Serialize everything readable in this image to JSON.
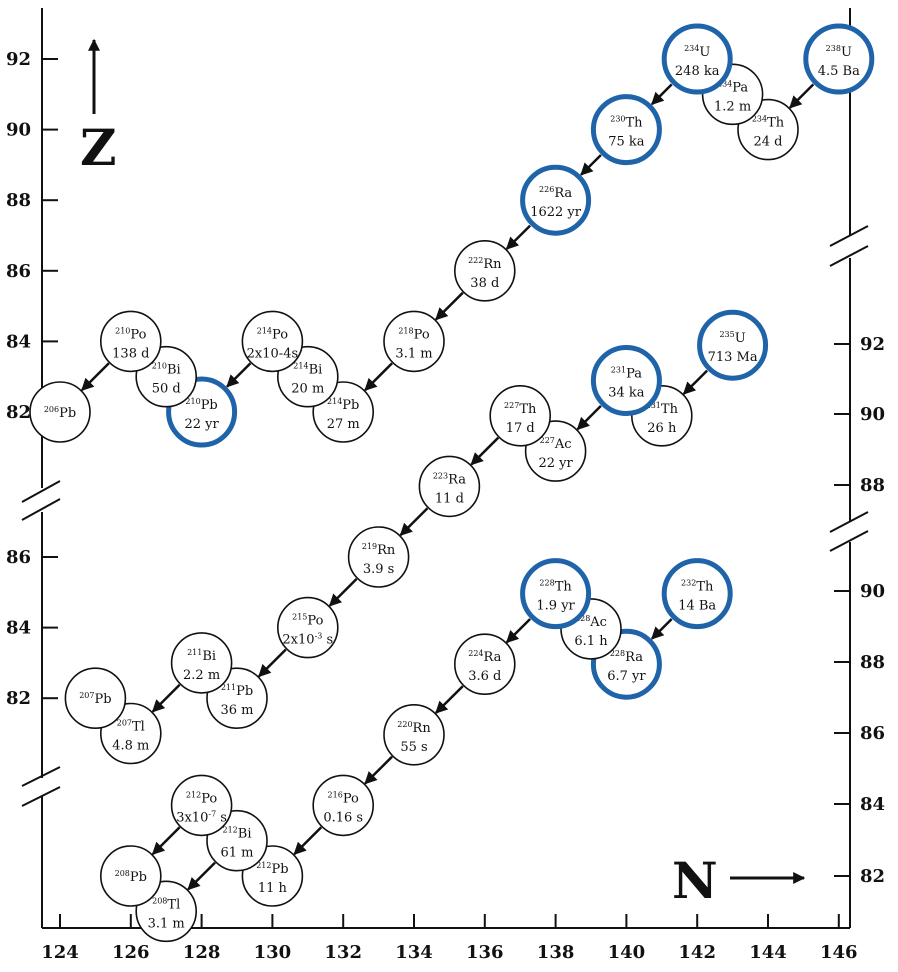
{
  "axes": {
    "x_title": "N",
    "y_title": "Z",
    "x_ticks": [
      "124",
      "126",
      "128",
      "130",
      "132",
      "134",
      "136",
      "138",
      "140",
      "142",
      "144",
      "146"
    ]
  },
  "panels": [
    {
      "id": "uranium-238-series",
      "left_ticks": [
        "92",
        "90",
        "88",
        "86",
        "84",
        "82"
      ],
      "right_ticks": [],
      "nuclides": [
        {
          "mass": "238",
          "symbol": "U",
          "half_life": "4.5 Ba",
          "long_lived": true
        },
        {
          "mass": "234",
          "symbol": "Th",
          "half_life": "24 d",
          "long_lived": false
        },
        {
          "mass": "234",
          "symbol": "Pa",
          "half_life": "1.2 m",
          "long_lived": false
        },
        {
          "mass": "234",
          "symbol": "U",
          "half_life": "248 ka",
          "long_lived": true
        },
        {
          "mass": "230",
          "symbol": "Th",
          "half_life": "75 ka",
          "long_lived": true
        },
        {
          "mass": "226",
          "symbol": "Ra",
          "half_life": "1622 yr",
          "long_lived": true
        },
        {
          "mass": "222",
          "symbol": "Rn",
          "half_life": "38 d",
          "long_lived": false
        },
        {
          "mass": "218",
          "symbol": "Po",
          "half_life": "3.1 m",
          "long_lived": false
        },
        {
          "mass": "214",
          "symbol": "Pb",
          "half_life": "27 m",
          "long_lived": false
        },
        {
          "mass": "214",
          "symbol": "Bi",
          "half_life": "20 m",
          "long_lived": false
        },
        {
          "mass": "214",
          "symbol": "Po",
          "half_life": "2x10-4s",
          "long_lived": false
        },
        {
          "mass": "210",
          "symbol": "Pb",
          "half_life": "22 yr",
          "long_lived": true
        },
        {
          "mass": "210",
          "symbol": "Bi",
          "half_life": "50 d",
          "long_lived": false
        },
        {
          "mass": "210",
          "symbol": "Po",
          "half_life": "138 d",
          "long_lived": false
        },
        {
          "mass": "206",
          "symbol": "Pb",
          "half_life": "",
          "long_lived": false
        }
      ]
    },
    {
      "id": "uranium-235-series",
      "left_ticks": [
        "86",
        "84",
        "82"
      ],
      "right_ticks": [
        "92",
        "90",
        "88"
      ],
      "nuclides": [
        {
          "mass": "235",
          "symbol": "U",
          "half_life": "713 Ma",
          "long_lived": true
        },
        {
          "mass": "231",
          "symbol": "Th",
          "half_life": "26 h",
          "long_lived": false
        },
        {
          "mass": "231",
          "symbol": "Pa",
          "half_life": "34 ka",
          "long_lived": true
        },
        {
          "mass": "227",
          "symbol": "Ac",
          "half_life": "22 yr",
          "long_lived": false
        },
        {
          "mass": "227",
          "symbol": "Th",
          "half_life": "17 d",
          "long_lived": false
        },
        {
          "mass": "223",
          "symbol": "Ra",
          "half_life": "11 d",
          "long_lived": false
        },
        {
          "mass": "219",
          "symbol": "Rn",
          "half_life": "3.9 s",
          "long_lived": false
        },
        {
          "mass": "215",
          "symbol": "Po",
          "half_life": "2x10",
          "half_life_exp": "-3",
          "half_life_unit": " s",
          "long_lived": false
        },
        {
          "mass": "211",
          "symbol": "Pb",
          "half_life": "36 m",
          "long_lived": false
        },
        {
          "mass": "211",
          "symbol": "Bi",
          "half_life": "2.2 m",
          "long_lived": false
        },
        {
          "mass": "207",
          "symbol": "Tl",
          "half_life": "4.8 m",
          "long_lived": false
        },
        {
          "mass": "207",
          "symbol": "Pb",
          "half_life": "",
          "long_lived": false
        }
      ]
    },
    {
      "id": "thorium-232-series",
      "left_ticks": [],
      "right_ticks": [
        "90",
        "88",
        "86",
        "84",
        "82"
      ],
      "nuclides": [
        {
          "mass": "232",
          "symbol": "Th",
          "half_life": "14 Ba",
          "long_lived": true
        },
        {
          "mass": "228",
          "symbol": "Ra",
          "half_life": "6.7 yr",
          "long_lived": true
        },
        {
          "mass": "228",
          "symbol": "Ac",
          "half_life": "6.1 h",
          "long_lived": false
        },
        {
          "mass": "228",
          "symbol": "Th",
          "half_life": "1.9 yr",
          "long_lived": true
        },
        {
          "mass": "224",
          "symbol": "Ra",
          "half_life": "3.6 d",
          "long_lived": false
        },
        {
          "mass": "220",
          "symbol": "Rn",
          "half_life": "55 s",
          "long_lived": false
        },
        {
          "mass": "216",
          "symbol": "Po",
          "half_life": "0.16 s",
          "long_lived": false
        },
        {
          "mass": "212",
          "symbol": "Pb",
          "half_life": "11 h",
          "long_lived": false
        },
        {
          "mass": "212",
          "symbol": "Bi",
          "half_life": "61 m",
          "long_lived": false
        },
        {
          "mass": "212",
          "symbol": "Po",
          "half_life": "3x10",
          "half_life_exp": "-7",
          "half_life_unit": " s",
          "long_lived": false
        },
        {
          "mass": "208",
          "symbol": "Tl",
          "half_life": "3.1 m",
          "long_lived": false
        },
        {
          "mass": "208",
          "symbol": "Pb",
          "half_life": "",
          "long_lived": false
        }
      ]
    }
  ],
  "colors": {
    "long_lived_ring": "#1f63a8",
    "ring": "#111111",
    "axis": "#111111",
    "background": "#ffffff"
  }
}
